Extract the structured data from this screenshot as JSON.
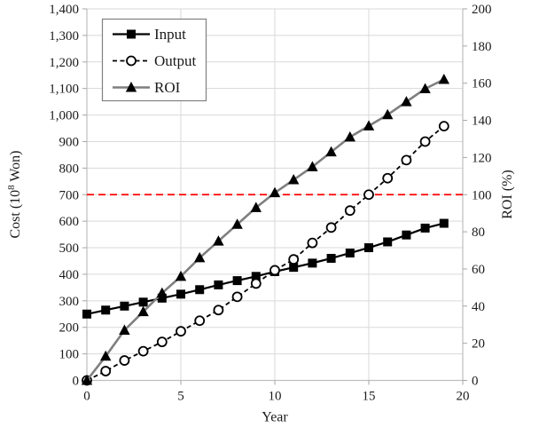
{
  "chart_data": {
    "type": "line",
    "title": "",
    "xlabel": "Year",
    "left_axis": {
      "label": "Cost (10⁸ Won)",
      "min": 0,
      "max": 1400,
      "tick_step": 100,
      "tick_labels": [
        "0",
        "100",
        "200",
        "300",
        "400",
        "500",
        "600",
        "700",
        "800",
        "900",
        "1,000",
        "1,100",
        "1,200",
        "1,300",
        "1,400"
      ]
    },
    "right_axis": {
      "label": "ROI (%)",
      "min": 0,
      "max": 200,
      "tick_step": 20,
      "tick_labels": [
        "0",
        "20",
        "40",
        "60",
        "80",
        "100",
        "120",
        "140",
        "160",
        "180",
        "200"
      ]
    },
    "x_axis": {
      "label": "Year",
      "min": 0,
      "max": 20,
      "tick_labels": [
        "0",
        "5",
        "10",
        "15",
        "20"
      ],
      "tick_values": [
        0,
        5,
        10,
        15,
        20
      ],
      "gridline_values": [
        5,
        10,
        15
      ]
    },
    "x": [
      0,
      1,
      2,
      3,
      4,
      5,
      6,
      7,
      8,
      9,
      10,
      11,
      12,
      13,
      14,
      15,
      16,
      17,
      18,
      19
    ],
    "series": [
      {
        "name": "Input",
        "axis": "left",
        "marker": "square",
        "line_style": "solid",
        "line_color": "#000000",
        "marker_color": "#000000",
        "values": [
          250,
          265,
          280,
          295,
          310,
          325,
          342,
          360,
          376,
          392,
          410,
          426,
          442,
          460,
          480,
          500,
          522,
          548,
          574,
          592
        ]
      },
      {
        "name": "Output",
        "axis": "left",
        "marker": "circle-open",
        "line_style": "dashed",
        "line_color": "#000000",
        "marker_color": "#ffffff",
        "values": [
          0,
          35,
          75,
          110,
          145,
          185,
          225,
          265,
          315,
          365,
          415,
          456,
          518,
          576,
          640,
          700,
          762,
          830,
          900,
          958
        ]
      },
      {
        "name": "ROI",
        "axis": "right",
        "marker": "triangle",
        "line_style": "solid",
        "line_color": "#7f7f7f",
        "marker_color": "#000000",
        "values": [
          0,
          13,
          27,
          37,
          47,
          56,
          66,
          75,
          84,
          93,
          101,
          108,
          115,
          123,
          131,
          137,
          143,
          150,
          157,
          162
        ]
      }
    ],
    "reference_line": {
      "axis": "right",
      "value": 100,
      "color": "#ff0000",
      "style": "dashed"
    },
    "legend": {
      "position": "top-left-inside",
      "entries": [
        "Input",
        "Output",
        "ROI"
      ]
    },
    "grid": true,
    "colors": {
      "gridline": "#d9d9d9",
      "axis_line": "#bfbfbf",
      "tick_mark": "#a6a6a6",
      "legend_border": "#808080",
      "text": "#1a1a1a"
    }
  }
}
